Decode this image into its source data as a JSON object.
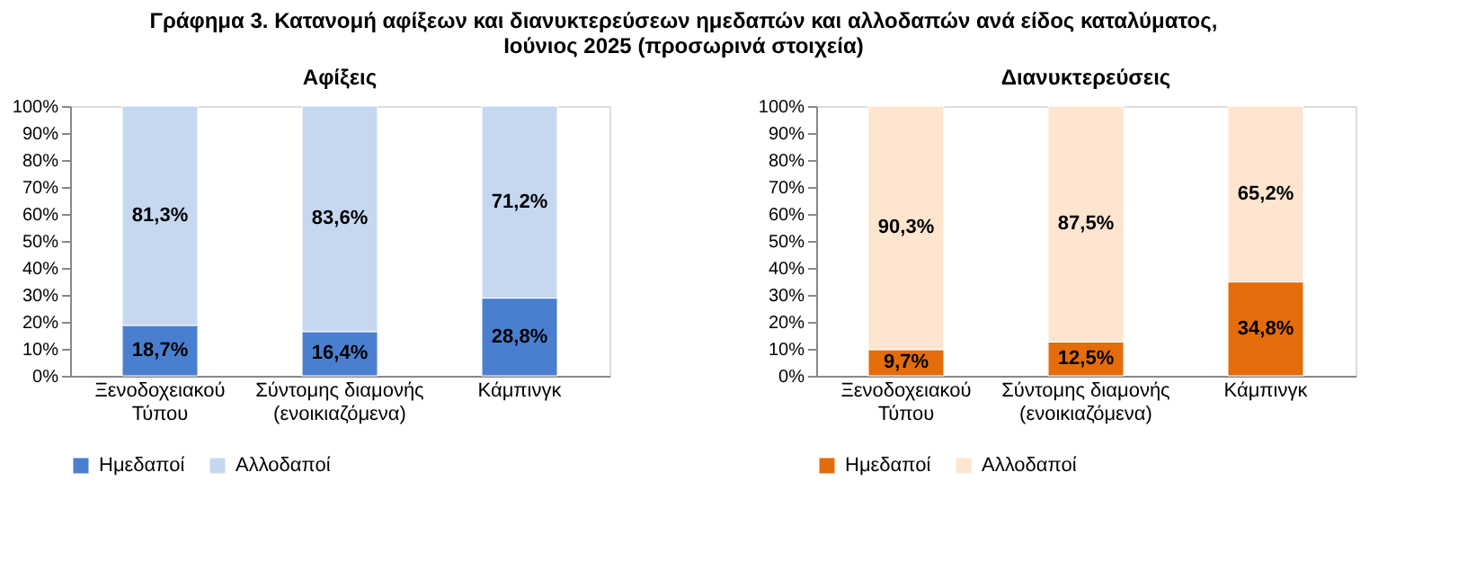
{
  "chart_data": [
    {
      "type": "bar",
      "stacked": true,
      "title": "Αφίξεις",
      "annotations": [
        "Γράφημα 3. Κατανομή αφίξεων και διανυκτερεύσεων ημεδαπών και αλλοδαπών ανά είδος καταλύματος,\nΙούνιος 2025 (προσωρινά στοιχεία)"
      ],
      "categories": [
        "Ξενοδοχειακού\nΤύπου",
        "Σύντομης διαμονής\n(ενοικιαζόμενα)",
        "Κάμπινγκ"
      ],
      "series": [
        {
          "name": "Ημεδαποί",
          "color": "#4a7fd0",
          "values": [
            18.7,
            16.4,
            28.8
          ],
          "value_labels": [
            "18,7%",
            "16,4%",
            "28,8%"
          ]
        },
        {
          "name": "Αλλοδαποί",
          "color": "#c5d8f0",
          "values": [
            81.3,
            83.6,
            71.2
          ],
          "value_labels": [
            "81,3%",
            "83,6%",
            "71,2%"
          ]
        }
      ],
      "ylim": [
        0,
        100
      ],
      "yticks": [
        {
          "value": 0,
          "label": "0%"
        },
        {
          "value": 10,
          "label": "10%"
        },
        {
          "value": 20,
          "label": "20%"
        },
        {
          "value": 30,
          "label": "30%"
        },
        {
          "value": 40,
          "label": "40%"
        },
        {
          "value": 50,
          "label": "50%"
        },
        {
          "value": 60,
          "label": "60%"
        },
        {
          "value": 70,
          "label": "70%"
        },
        {
          "value": 80,
          "label": "80%"
        },
        {
          "value": 90,
          "label": "90%"
        },
        {
          "value": 100,
          "label": "100%"
        }
      ],
      "legend": "bottom"
    },
    {
      "type": "bar",
      "stacked": true,
      "title": "Διανυκτερεύσεις",
      "categories": [
        "Ξενοδοχειακού\nΤύπου",
        "Σύντομης διαμονής\n(ενοικιαζόμενα)",
        "Κάμπινγκ"
      ],
      "series": [
        {
          "name": "Ημεδαποί",
          "color": "#e46c0a",
          "values": [
            9.7,
            12.5,
            34.8
          ],
          "value_labels": [
            "9,7%",
            "12,5%",
            "34,8%"
          ]
        },
        {
          "name": "Αλλοδαποί",
          "color": "#fde5cf",
          "values": [
            90.3,
            87.5,
            65.2
          ],
          "value_labels": [
            "90,3%",
            "87,5%",
            "65,2%"
          ]
        }
      ],
      "ylim": [
        0,
        100
      ],
      "yticks": [
        {
          "value": 0,
          "label": "0%"
        },
        {
          "value": 10,
          "label": "10%"
        },
        {
          "value": 20,
          "label": "20%"
        },
        {
          "value": 30,
          "label": "30%"
        },
        {
          "value": 40,
          "label": "40%"
        },
        {
          "value": 50,
          "label": "50%"
        },
        {
          "value": 60,
          "label": "60%"
        },
        {
          "value": 70,
          "label": "70%"
        },
        {
          "value": 80,
          "label": "80%"
        },
        {
          "value": 90,
          "label": "90%"
        },
        {
          "value": 100,
          "label": "100%"
        }
      ],
      "legend": "bottom"
    }
  ]
}
